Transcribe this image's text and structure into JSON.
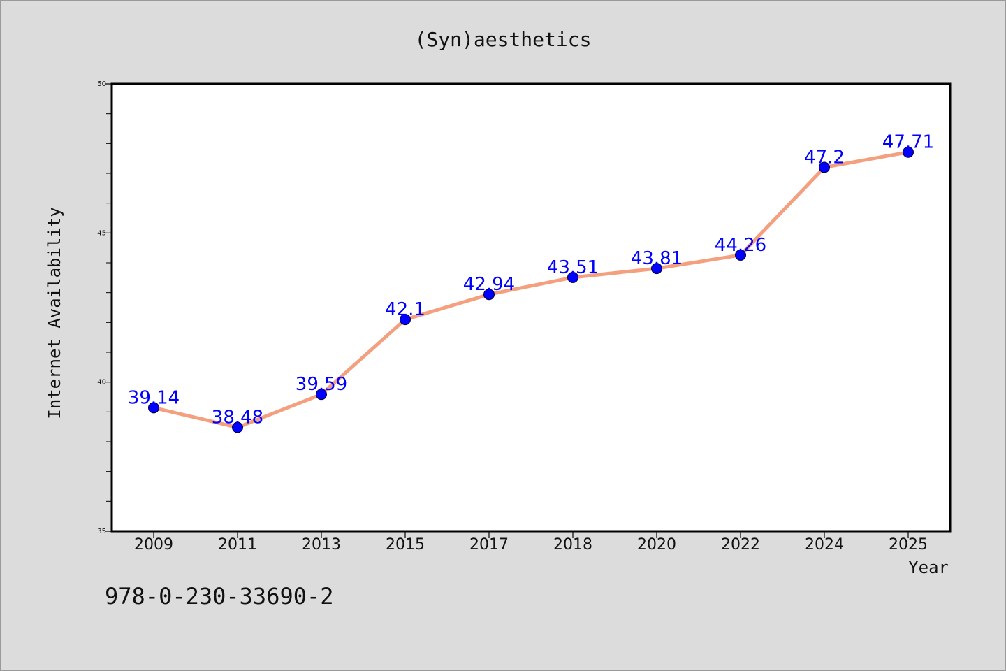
{
  "colors": {
    "background": "#dcdcdc",
    "plot_background": "#ffffff",
    "line": "#f4a07f",
    "marker": "#0000ff",
    "label": "#0000ff",
    "text": "#111111"
  },
  "chart_data": {
    "type": "line",
    "title": "(Syn)aesthetics",
    "xlabel": "Year",
    "ylabel": "Internet Availability",
    "categories": [
      "2009",
      "2011",
      "2013",
      "2015",
      "2017",
      "2018",
      "2020",
      "2022",
      "2024",
      "2025"
    ],
    "series": [
      {
        "values": [
          39.14,
          38.48,
          39.59,
          42.1,
          42.94,
          43.51,
          43.81,
          44.26,
          47.2,
          47.71
        ],
        "data_labels": [
          "39.14",
          "38.48",
          "39.59",
          "42.1",
          "42.94",
          "43.51",
          "43.81",
          "44.26",
          "47.2",
          "47.71"
        ],
        "marker": "circle"
      }
    ],
    "ylim": [
      35,
      50
    ],
    "y_ticks": [
      "35",
      "40",
      "45",
      "50"
    ],
    "y_minor_ticks": [
      36,
      37,
      38,
      39,
      41,
      42,
      43,
      44,
      46,
      47,
      48,
      49
    ],
    "grid": false,
    "legend": "none"
  },
  "footer_text": "978-0-230-33690-2"
}
